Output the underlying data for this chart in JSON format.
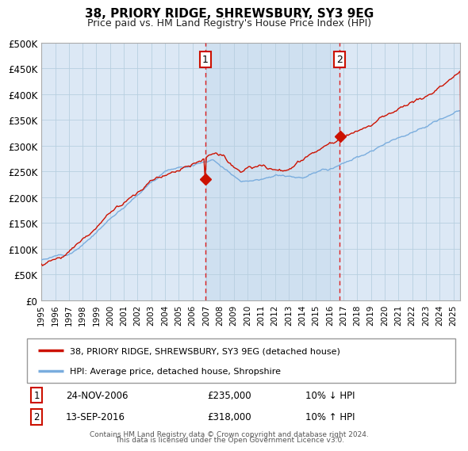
{
  "title": "38, PRIORY RIDGE, SHREWSBURY, SY3 9EG",
  "subtitle": "Price paid vs. HM Land Registry's House Price Index (HPI)",
  "background_color": "#ffffff",
  "plot_bg_color": "#dce8f5",
  "grid_color": "#b8cfe0",
  "hpi_color": "#7aadde",
  "property_color": "#cc1100",
  "transaction1_date": 2006.92,
  "transaction1_price": 235000,
  "transaction2_date": 2016.71,
  "transaction2_price": 318000,
  "vline_color": "#dd2222",
  "shade_color": "#cfe0f0",
  "legend_entry1": "38, PRIORY RIDGE, SHREWSBURY, SY3 9EG (detached house)",
  "legend_entry2": "HPI: Average price, detached house, Shropshire",
  "annotation1_label": "1",
  "annotation1_date": "24-NOV-2006",
  "annotation1_price": "£235,000",
  "annotation1_hpi": "10% ↓ HPI",
  "annotation2_label": "2",
  "annotation2_date": "13-SEP-2016",
  "annotation2_price": "£318,000",
  "annotation2_hpi": "10% ↑ HPI",
  "footer1": "Contains HM Land Registry data © Crown copyright and database right 2024.",
  "footer2": "This data is licensed under the Open Government Licence v3.0.",
  "ylim": [
    0,
    500000
  ],
  "yticks": [
    0,
    50000,
    100000,
    150000,
    200000,
    250000,
    300000,
    350000,
    400000,
    450000,
    500000
  ],
  "xstart": 1995.0,
  "xend": 2025.5
}
